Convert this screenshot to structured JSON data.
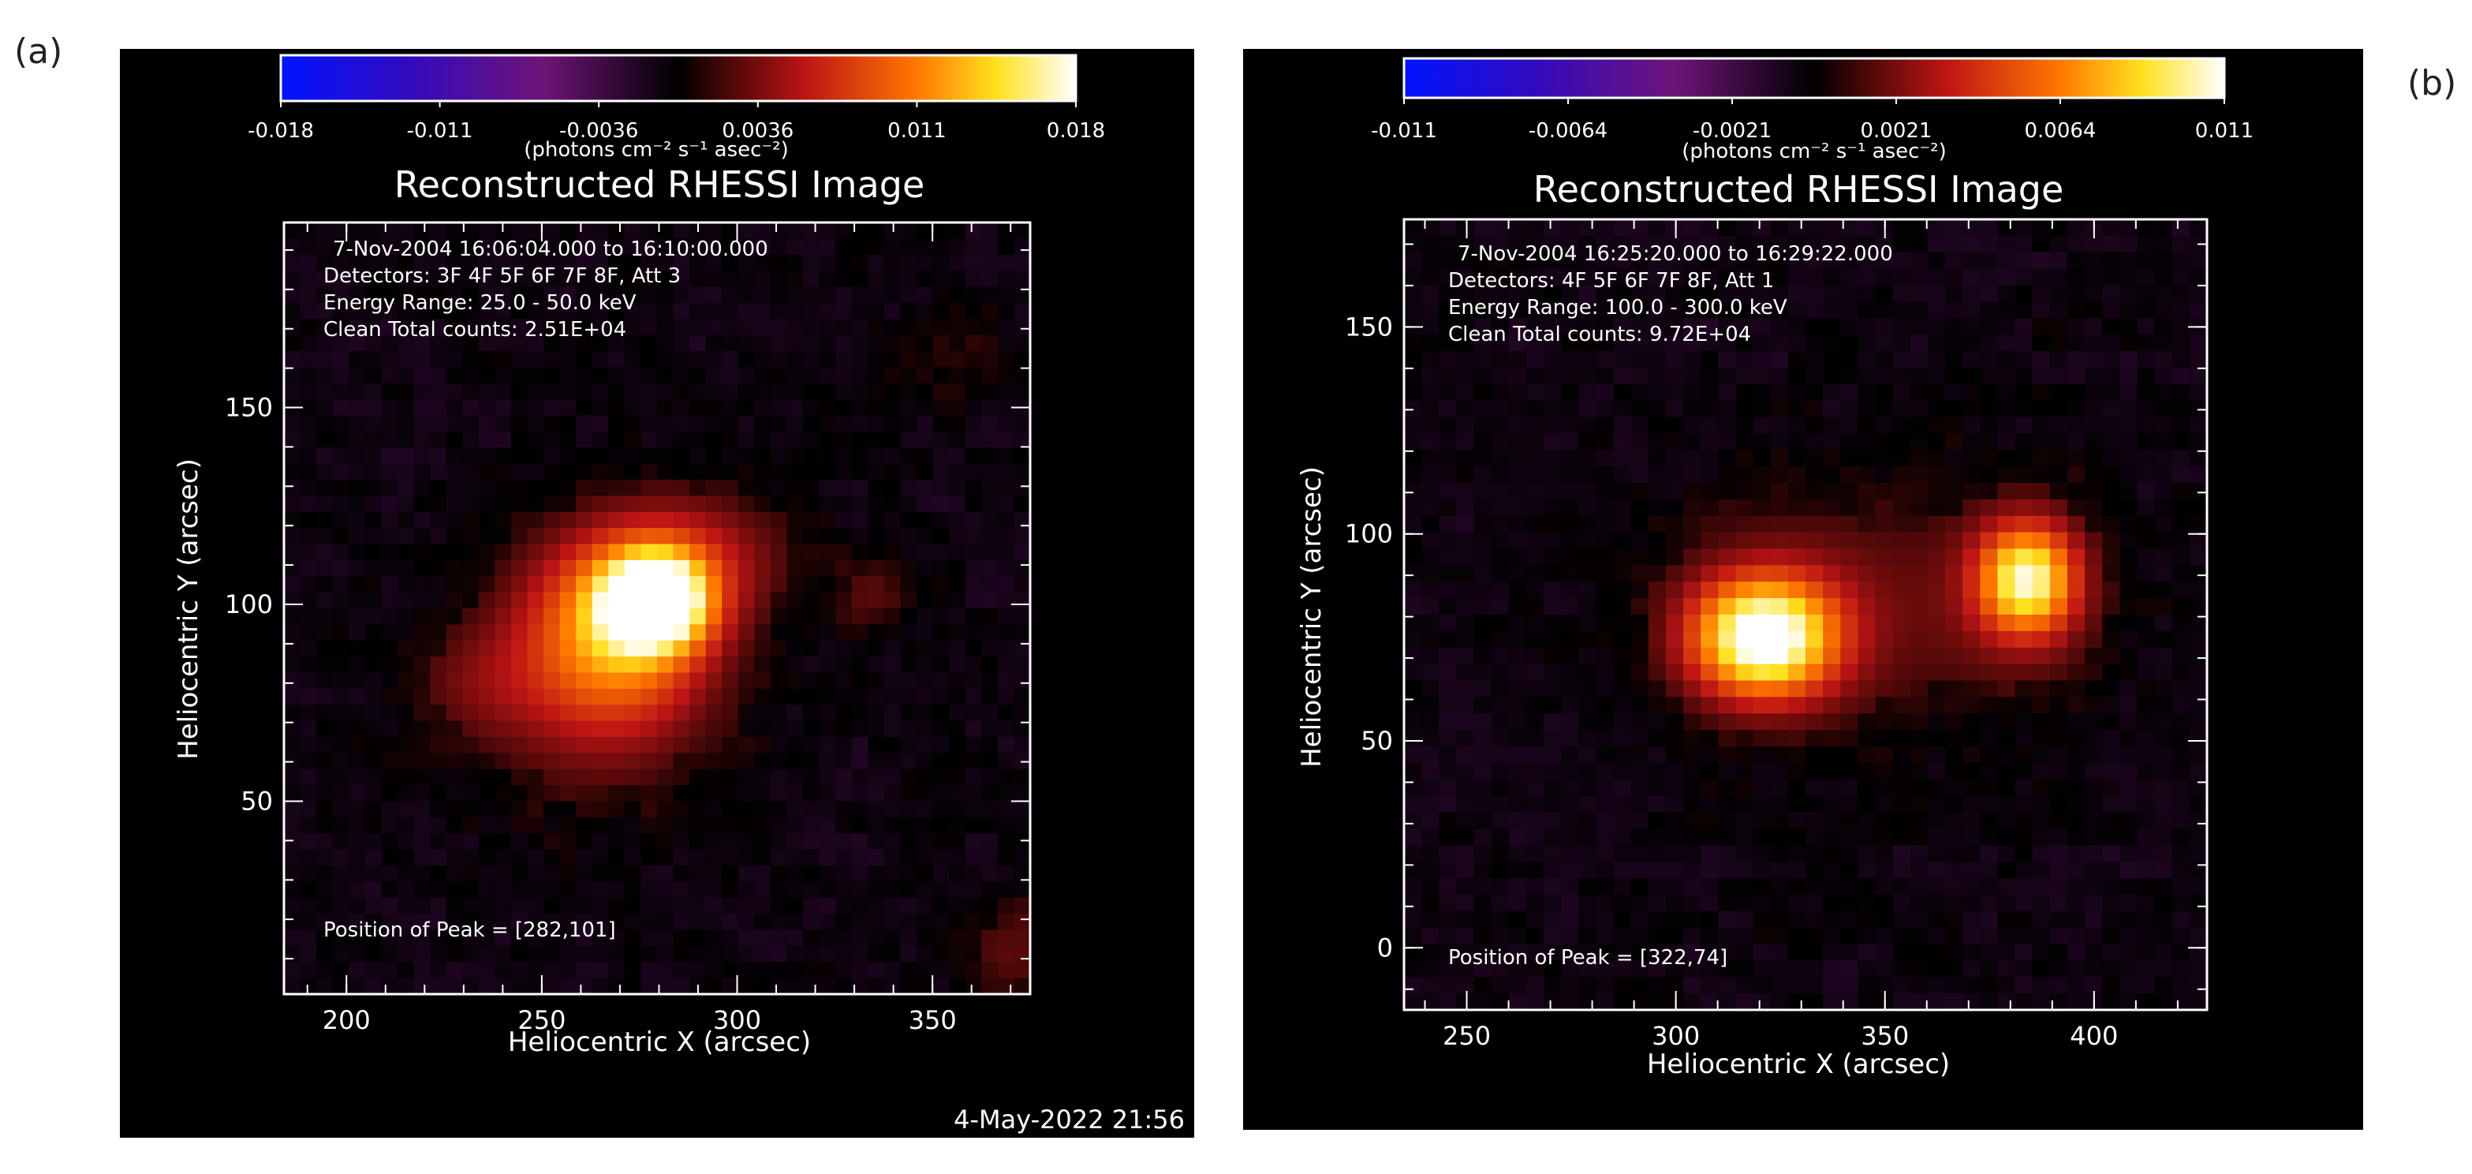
{
  "panel_labels": {
    "a": "(a)",
    "b": "(b)"
  },
  "footer_timestamp": "4-May-2022 21:56",
  "chart_data": [
    {
      "type": "heatmap",
      "panel": "(a)",
      "title": "Reconstructed RHESSI Image",
      "colorbar": {
        "ticks": [
          "-0.018",
          "-0.011",
          "-0.0036",
          "0.0036",
          "0.011",
          "0.018"
        ],
        "range": [
          -0.018,
          0.018
        ],
        "unit_label": "(photons cm⁻² s⁻¹ asec⁻²)"
      },
      "info_lines": [
        "7-Nov-2004 16:06:04.000 to 16:10:00.000",
        "Detectors: 3F 4F 5F 6F 7F 8F, Att 3",
        "Energy Range: 25.0 - 50.0 keV",
        "Clean     Total counts: 2.51E+04"
      ],
      "peak_label": "Position of Peak = [282,101]",
      "xlabel": "Heliocentric X (arcsec)",
      "ylabel": "Heliocentric Y (arcsec)",
      "xlim": [
        184,
        375
      ],
      "ylim": [
        1,
        197
      ],
      "xticks": [
        200,
        250,
        300,
        350
      ],
      "yticks": [
        50,
        100,
        150
      ],
      "sources": [
        {
          "x": 279,
          "y": 101,
          "sx": 9,
          "sy": 8,
          "amp": 1.0
        },
        {
          "x": 270,
          "y": 94,
          "sx": 16,
          "sy": 16,
          "amp": 0.55
        },
        {
          "x": 289,
          "y": 112,
          "sx": 18,
          "sy": 12,
          "amp": 0.25
        },
        {
          "x": 262,
          "y": 80,
          "sx": 22,
          "sy": 22,
          "amp": 0.22
        },
        {
          "x": 232,
          "y": 80,
          "sx": 12,
          "sy": 10,
          "amp": 0.12
        },
        {
          "x": 335,
          "y": 102,
          "sx": 8,
          "sy": 8,
          "amp": 0.14
        },
        {
          "x": 370,
          "y": 12,
          "sx": 10,
          "sy": 10,
          "amp": 0.15
        },
        {
          "x": 355,
          "y": 165,
          "sx": 10,
          "sy": 10,
          "amp": 0.08
        }
      ]
    },
    {
      "type": "heatmap",
      "panel": "(b)",
      "title": "Reconstructed RHESSI Image",
      "colorbar": {
        "ticks": [
          "-0.011",
          "-0.0064",
          "-0.0021",
          "0.0021",
          "0.0064",
          "0.011"
        ],
        "range": [
          -0.011,
          0.011
        ],
        "unit_label": "(photons cm⁻² s⁻¹ asec⁻²)"
      },
      "info_lines": [
        "7-Nov-2004 16:25:20.000 to 16:29:22.000",
        "Detectors: 4F 5F 6F 7F 8F, Att 1",
        "Energy Range: 100.0 - 300.0 keV",
        "Clean     Total counts: 9.72E+04"
      ],
      "peak_label": "Position of Peak = [322,74]",
      "xlabel": "Heliocentric X (arcsec)",
      "ylabel": "Heliocentric Y (arcsec)",
      "xlim": [
        235,
        427
      ],
      "ylim": [
        -15,
        176
      ],
      "xticks": [
        250,
        300,
        350,
        400
      ],
      "yticks": [
        0,
        50,
        100,
        150
      ],
      "sources": [
        {
          "x": 321,
          "y": 75,
          "sx": 12,
          "sy": 10,
          "amp": 1.0
        },
        {
          "x": 384,
          "y": 89,
          "sx": 8,
          "sy": 9,
          "amp": 0.8
        },
        {
          "x": 335,
          "y": 82,
          "sx": 28,
          "sy": 22,
          "amp": 0.18
        },
        {
          "x": 384,
          "y": 85,
          "sx": 16,
          "sy": 20,
          "amp": 0.15
        }
      ]
    }
  ]
}
